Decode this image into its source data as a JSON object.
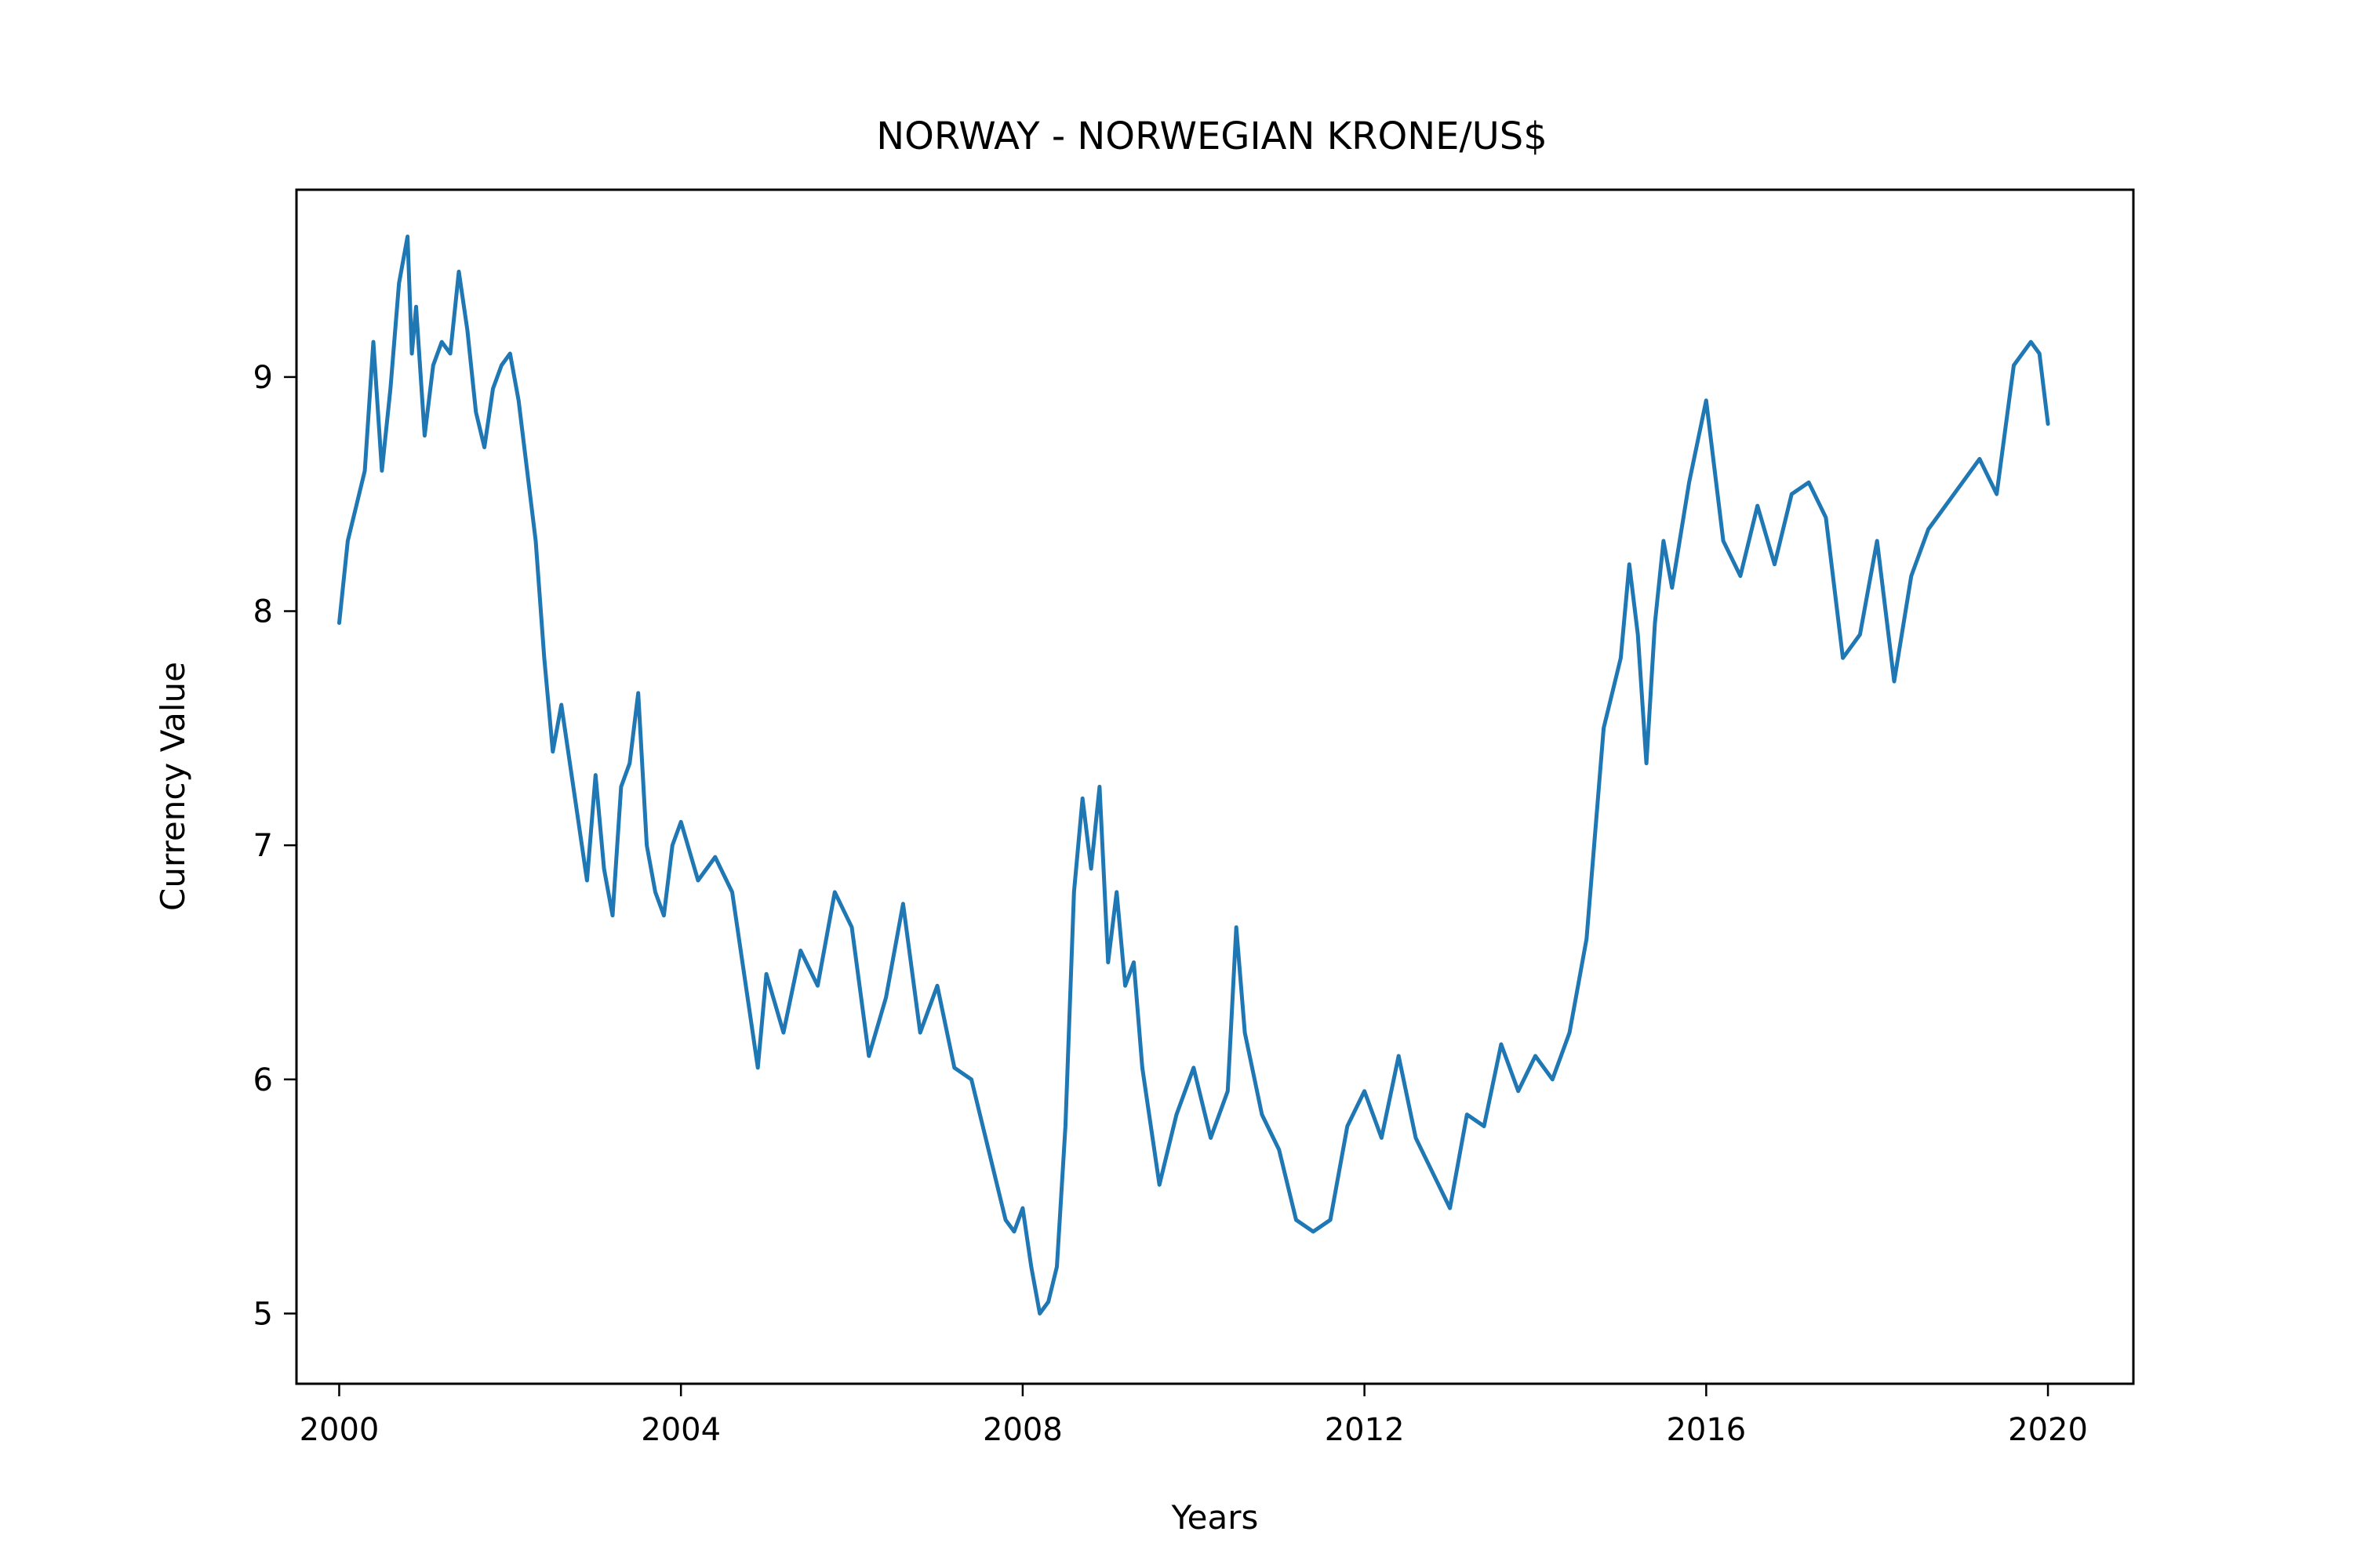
{
  "chart_data": {
    "type": "line",
    "title": "NORWAY - NORWEGIAN KRONE/US$",
    "xlabel": "Years",
    "ylabel": "Currency Value",
    "xlim": [
      1999.5,
      2021.0
    ],
    "ylim": [
      4.7,
      9.8
    ],
    "x_ticks": [
      2000,
      2004,
      2008,
      2012,
      2016,
      2020
    ],
    "y_ticks": [
      5,
      6,
      7,
      8,
      9
    ],
    "x_tick_labels": [
      "2000",
      "2004",
      "2008",
      "2012",
      "2016",
      "2020"
    ],
    "y_tick_labels": [
      "5",
      "6",
      "7",
      "8",
      "9"
    ],
    "grid": false,
    "legend": "none",
    "series": [
      {
        "color": "#1f77b4",
        "x": [
          2000.0,
          2000.1,
          2000.2,
          2000.3,
          2000.4,
          2000.5,
          2000.6,
          2000.7,
          2000.8,
          2000.85,
          2000.9,
          2001.0,
          2001.1,
          2001.2,
          2001.3,
          2001.4,
          2001.5,
          2001.6,
          2001.7,
          2001.8,
          2001.9,
          2002.0,
          2002.1,
          2002.2,
          2002.3,
          2002.4,
          2002.5,
          2002.6,
          2002.7,
          2002.8,
          2002.9,
          2003.0,
          2003.1,
          2003.2,
          2003.3,
          2003.4,
          2003.5,
          2003.6,
          2003.7,
          2003.8,
          2003.9,
          2004.0,
          2004.2,
          2004.4,
          2004.6,
          2004.8,
          2004.9,
          2005.0,
          2005.2,
          2005.4,
          2005.6,
          2005.8,
          2006.0,
          2006.2,
          2006.4,
          2006.6,
          2006.8,
          2007.0,
          2007.2,
          2007.4,
          2007.6,
          2007.8,
          2007.9,
          2008.0,
          2008.1,
          2008.2,
          2008.3,
          2008.4,
          2008.5,
          2008.6,
          2008.7,
          2008.8,
          2008.9,
          2009.0,
          2009.1,
          2009.2,
          2009.3,
          2009.4,
          2009.5,
          2009.6,
          2009.8,
          2010.0,
          2010.2,
          2010.4,
          2010.5,
          2010.6,
          2010.8,
          2011.0,
          2011.2,
          2011.4,
          2011.6,
          2011.8,
          2012.0,
          2012.2,
          2012.4,
          2012.6,
          2012.8,
          2013.0,
          2013.2,
          2013.4,
          2013.6,
          2013.8,
          2014.0,
          2014.2,
          2014.4,
          2014.6,
          2014.8,
          2015.0,
          2015.1,
          2015.2,
          2015.3,
          2015.4,
          2015.5,
          2015.6,
          2015.8,
          2016.0,
          2016.2,
          2016.4,
          2016.6,
          2016.8,
          2017.0,
          2017.2,
          2017.4,
          2017.6,
          2017.8,
          2018.0,
          2018.2,
          2018.4,
          2018.6,
          2018.8,
          2019.0,
          2019.2,
          2019.4,
          2019.6,
          2019.8,
          2019.9,
          2020.0
        ],
        "y": [
          7.95,
          8.3,
          8.45,
          8.6,
          9.15,
          8.6,
          8.95,
          9.4,
          9.6,
          9.1,
          9.3,
          8.75,
          9.05,
          9.15,
          9.1,
          9.45,
          9.2,
          8.85,
          8.7,
          8.95,
          9.05,
          9.1,
          8.9,
          8.6,
          8.3,
          7.8,
          7.4,
          7.6,
          7.35,
          7.1,
          6.85,
          7.3,
          6.9,
          6.7,
          7.25,
          7.35,
          7.65,
          7.0,
          6.8,
          6.7,
          7.0,
          7.1,
          6.85,
          6.95,
          6.8,
          6.3,
          6.05,
          6.45,
          6.2,
          6.55,
          6.4,
          6.8,
          6.65,
          6.1,
          6.35,
          6.75,
          6.2,
          6.4,
          6.05,
          6.0,
          5.7,
          5.4,
          5.35,
          5.45,
          5.2,
          5.0,
          5.05,
          5.2,
          5.8,
          6.8,
          7.2,
          6.9,
          7.25,
          6.5,
          6.8,
          6.4,
          6.5,
          6.05,
          5.8,
          5.55,
          5.85,
          6.05,
          5.75,
          5.95,
          6.65,
          6.2,
          5.85,
          5.7,
          5.4,
          5.35,
          5.4,
          5.8,
          5.95,
          5.75,
          6.1,
          5.75,
          5.6,
          5.45,
          5.85,
          5.8,
          6.15,
          5.95,
          6.1,
          6.0,
          6.2,
          6.6,
          7.5,
          7.8,
          8.2,
          7.9,
          7.35,
          7.95,
          8.3,
          8.1,
          8.55,
          8.9,
          8.3,
          8.15,
          8.45,
          8.2,
          8.5,
          8.55,
          8.4,
          7.8,
          7.9,
          8.3,
          7.7,
          8.15,
          8.35,
          8.45,
          8.55,
          8.65,
          8.5,
          9.05,
          9.15,
          9.1,
          8.8
        ]
      }
    ]
  }
}
